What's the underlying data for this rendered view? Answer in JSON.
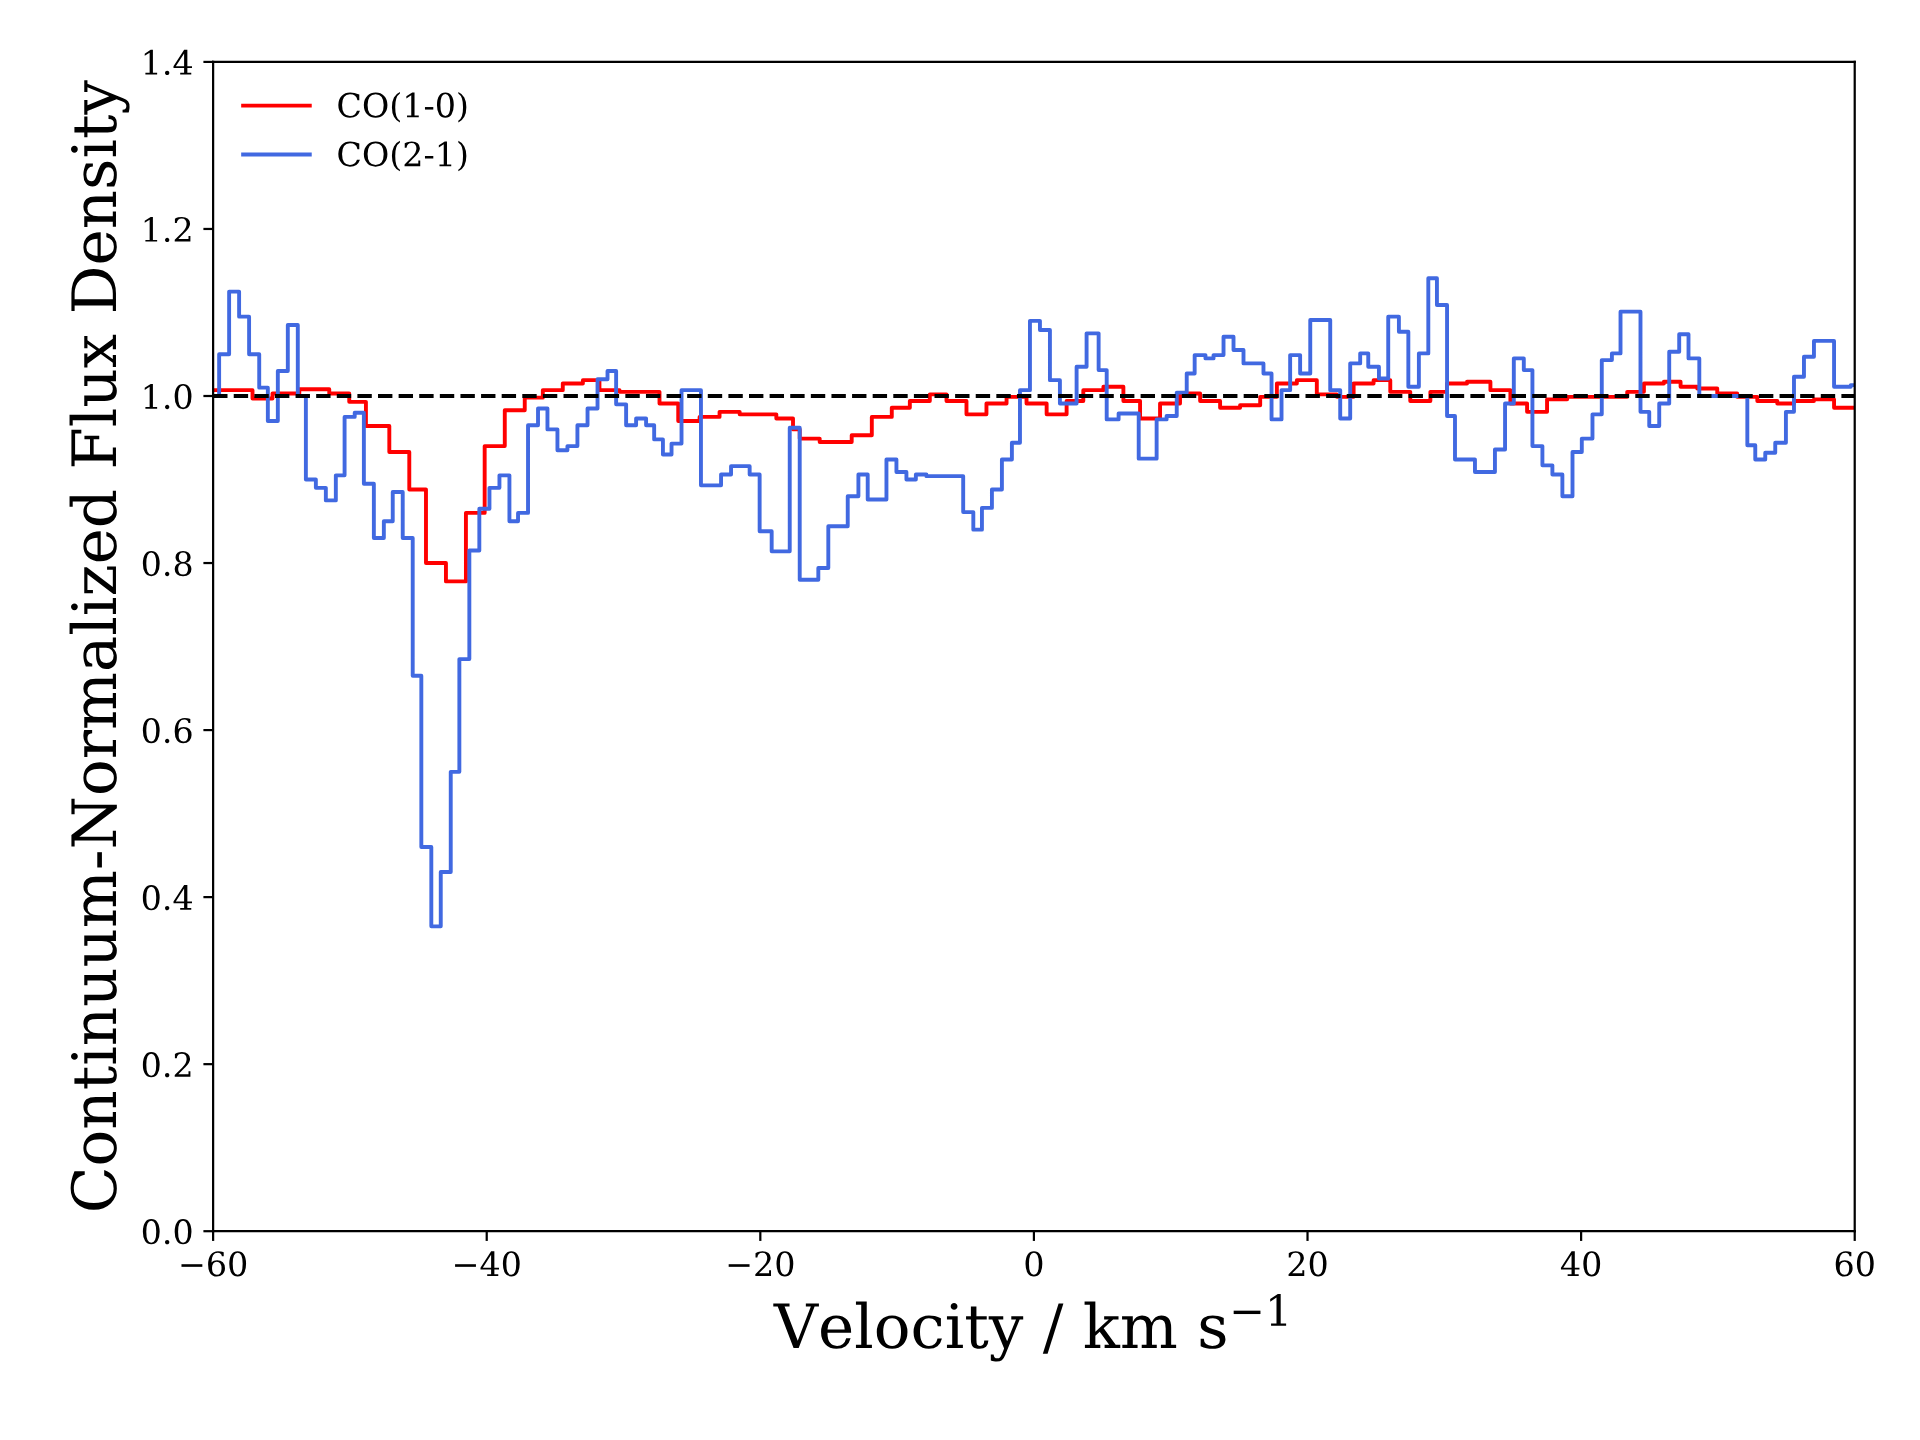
{
  "chart_data": {
    "type": "step",
    "xlabel": "Velocity / km s$^{−1}$",
    "ylabel": "Continuum-Normalized Flux Density",
    "xlim": [
      -60,
      60
    ],
    "ylim": [
      0,
      1.4
    ],
    "xticks": [
      {
        "value": -60,
        "label": "−60"
      },
      {
        "value": -40,
        "label": "−40"
      },
      {
        "value": -20,
        "label": "−20"
      },
      0,
      20,
      40,
      60
    ],
    "yticks": [
      {
        "value": 0,
        "label": "0.0"
      },
      0.2,
      0.4,
      0.6,
      0.8,
      {
        "value": 1,
        "label": "1.0"
      },
      1.2,
      1.4
    ],
    "grid": false,
    "legend": "top left",
    "line_style": "solid",
    "marker": "none",
    "ref_lines": [
      {
        "axis": "y",
        "value": 1,
        "color": "#000000",
        "line_style": "dashed"
      }
    ],
    "series": [
      {
        "name": "CO(1-0)",
        "color": "#ff0000",
        "x": [
          -60,
          -57.12,
          -55.66,
          -53.7,
          -51.51,
          -50.05,
          -48.83,
          -47.12,
          -45.66,
          -44.44,
          -42.98,
          -41.52,
          -40.15,
          -38.68,
          -37.22,
          -35.9,
          -34.44,
          -32.97,
          -31.76,
          -30.29,
          -27.37,
          -26.0,
          -24.44,
          -22.98,
          -21.51,
          -18.83,
          -17.61,
          -17.12,
          -15.66,
          -13.32,
          -11.85,
          -10.39,
          -9.07,
          -7.61,
          -6.39,
          -4.93,
          -3.47,
          -2.0,
          -0.54,
          0.93,
          2.39,
          3.61,
          5.08,
          6.54,
          7.76,
          9.22,
          10.68,
          12.15,
          13.61,
          15.07,
          16.54,
          17.76,
          19.22,
          20.68,
          22.15,
          23.37,
          24.83,
          26.05,
          27.51,
          28.98,
          30.2,
          31.66,
          33.37,
          34.83,
          36.05,
          37.51,
          38.98,
          43.37,
          44.59,
          46.05,
          47.27,
          48.49,
          49.95,
          51.41,
          52.88,
          54.34,
          55.56,
          57.02,
          58.49,
          60
        ],
        "values": [
          1.007,
          0.997,
          1.003,
          1.008,
          1.003,
          0.993,
          0.964,
          0.933,
          0.888,
          0.8,
          0.778,
          0.86,
          0.94,
          0.983,
          0.998,
          1.007,
          1.015,
          1.019,
          1.007,
          1.005,
          0.991,
          0.97,
          0.975,
          0.981,
          0.978,
          0.973,
          0.96,
          0.949,
          0.945,
          0.953,
          0.975,
          0.986,
          0.994,
          1.002,
          0.994,
          0.978,
          0.991,
          0.999,
          0.991,
          0.978,
          0.994,
          1.007,
          1.011,
          0.994,
          0.973,
          0.991,
          1.003,
          0.994,
          0.986,
          0.989,
          0.999,
          1.015,
          1.019,
          1.002,
          0.999,
          1.015,
          1.019,
          1.005,
          0.994,
          1.005,
          1.015,
          1.017,
          1.007,
          0.991,
          0.981,
          0.996,
          0.999,
          1.005,
          1.015,
          1.017,
          1.011,
          1.009,
          1.003,
          0.999,
          0.994,
          0.991,
          0.994,
          0.996,
          0.986,
          0.986
        ]
      },
      {
        "name": "CO(2-1)",
        "color": "#4169e1",
        "x": [
          -60,
          -59.56,
          -58.83,
          -58.1,
          -57.37,
          -56.63,
          -56.0,
          -55.27,
          -54.54,
          -53.81,
          -53.22,
          -52.49,
          -51.76,
          -51.03,
          -50.39,
          -49.65,
          -48.98,
          -48.25,
          -47.52,
          -46.87,
          -46.14,
          -45.41,
          -44.78,
          -44.05,
          -43.36,
          -42.63,
          -42.0,
          -41.27,
          -40.54,
          -39.8,
          -39.07,
          -38.34,
          -37.71,
          -36.98,
          -36.25,
          -35.56,
          -34.83,
          -34.1,
          -33.37,
          -32.63,
          -31.9,
          -31.17,
          -30.54,
          -29.81,
          -29.08,
          -28.35,
          -27.76,
          -27.12,
          -26.49,
          -25.76,
          -24.34,
          -22.87,
          -22.14,
          -20.78,
          -20.05,
          -19.17,
          -17.85,
          -17.12,
          -15.76,
          -15.03,
          -13.61,
          -12.83,
          -12.15,
          -10.78,
          -10.05,
          -9.32,
          -8.63,
          -7.86,
          -5.17,
          -4.43,
          -3.8,
          -3.07,
          -2.34,
          -1.61,
          -1.02,
          -0.29,
          0.44,
          1.17,
          1.9,
          3.12,
          3.85,
          4.73,
          5.32,
          6.19,
          7.66,
          8.97,
          9.7,
          10.44,
          11.17,
          11.75,
          12.54,
          13.13,
          13.86,
          14.59,
          15.32,
          16.78,
          17.37,
          18.1,
          18.73,
          19.46,
          20.2,
          21.66,
          22.39,
          23.12,
          23.85,
          24.44,
          25.22,
          25.9,
          26.68,
          27.37,
          28.14,
          28.83,
          29.46,
          30.2,
          30.78,
          32.24,
          33.7,
          34.44,
          35.08,
          35.81,
          36.44,
          37.17,
          37.9,
          38.63,
          39.37,
          40.05,
          40.83,
          41.51,
          42.25,
          42.88,
          44.34,
          44.98,
          45.71,
          46.44,
          47.17,
          47.85,
          48.64,
          52.15,
          52.73,
          53.46,
          54.19,
          54.97,
          55.56,
          56.29,
          57.02,
          58.49,
          59.71,
          60
        ],
        "values": [
          1.0,
          1.05,
          1.125,
          1.095,
          1.05,
          1.01,
          0.97,
          1.03,
          1.085,
          1.0,
          0.9,
          0.89,
          0.875,
          0.905,
          0.975,
          0.98,
          0.895,
          0.83,
          0.85,
          0.885,
          0.83,
          0.665,
          0.46,
          0.365,
          0.43,
          0.55,
          0.685,
          0.815,
          0.865,
          0.89,
          0.905,
          0.85,
          0.86,
          0.965,
          0.985,
          0.96,
          0.935,
          0.94,
          0.965,
          0.985,
          1.02,
          1.03,
          0.99,
          0.965,
          0.973,
          0.965,
          0.948,
          0.93,
          0.943,
          1.007,
          0.893,
          0.906,
          0.916,
          0.906,
          0.838,
          0.814,
          0.962,
          0.78,
          0.794,
          0.844,
          0.88,
          0.906,
          0.876,
          0.924,
          0.909,
          0.9,
          0.906,
          0.904,
          0.861,
          0.84,
          0.866,
          0.888,
          0.924,
          0.944,
          1.007,
          1.09,
          1.079,
          1.019,
          0.991,
          1.035,
          1.075,
          1.031,
          0.972,
          0.979,
          0.925,
          0.972,
          0.976,
          1.004,
          1.027,
          1.049,
          1.045,
          1.049,
          1.071,
          1.055,
          1.039,
          1.027,
          0.972,
          1.007,
          1.049,
          1.027,
          1.091,
          1.007,
          0.973,
          1.039,
          1.051,
          1.035,
          1.021,
          1.095,
          1.077,
          1.011,
          1.051,
          1.141,
          1.109,
          0.976,
          0.924,
          0.909,
          0.936,
          0.991,
          1.045,
          1.031,
          0.94,
          0.917,
          0.906,
          0.88,
          0.933,
          0.949,
          0.978,
          1.043,
          1.051,
          1.101,
          0.981,
          0.964,
          0.991,
          1.053,
          1.074,
          1.045,
          1.0,
          0.941,
          0.924,
          0.932,
          0.944,
          0.981,
          1.023,
          1.047,
          1.066,
          1.011,
          1.013,
          1.013
        ]
      }
    ]
  }
}
